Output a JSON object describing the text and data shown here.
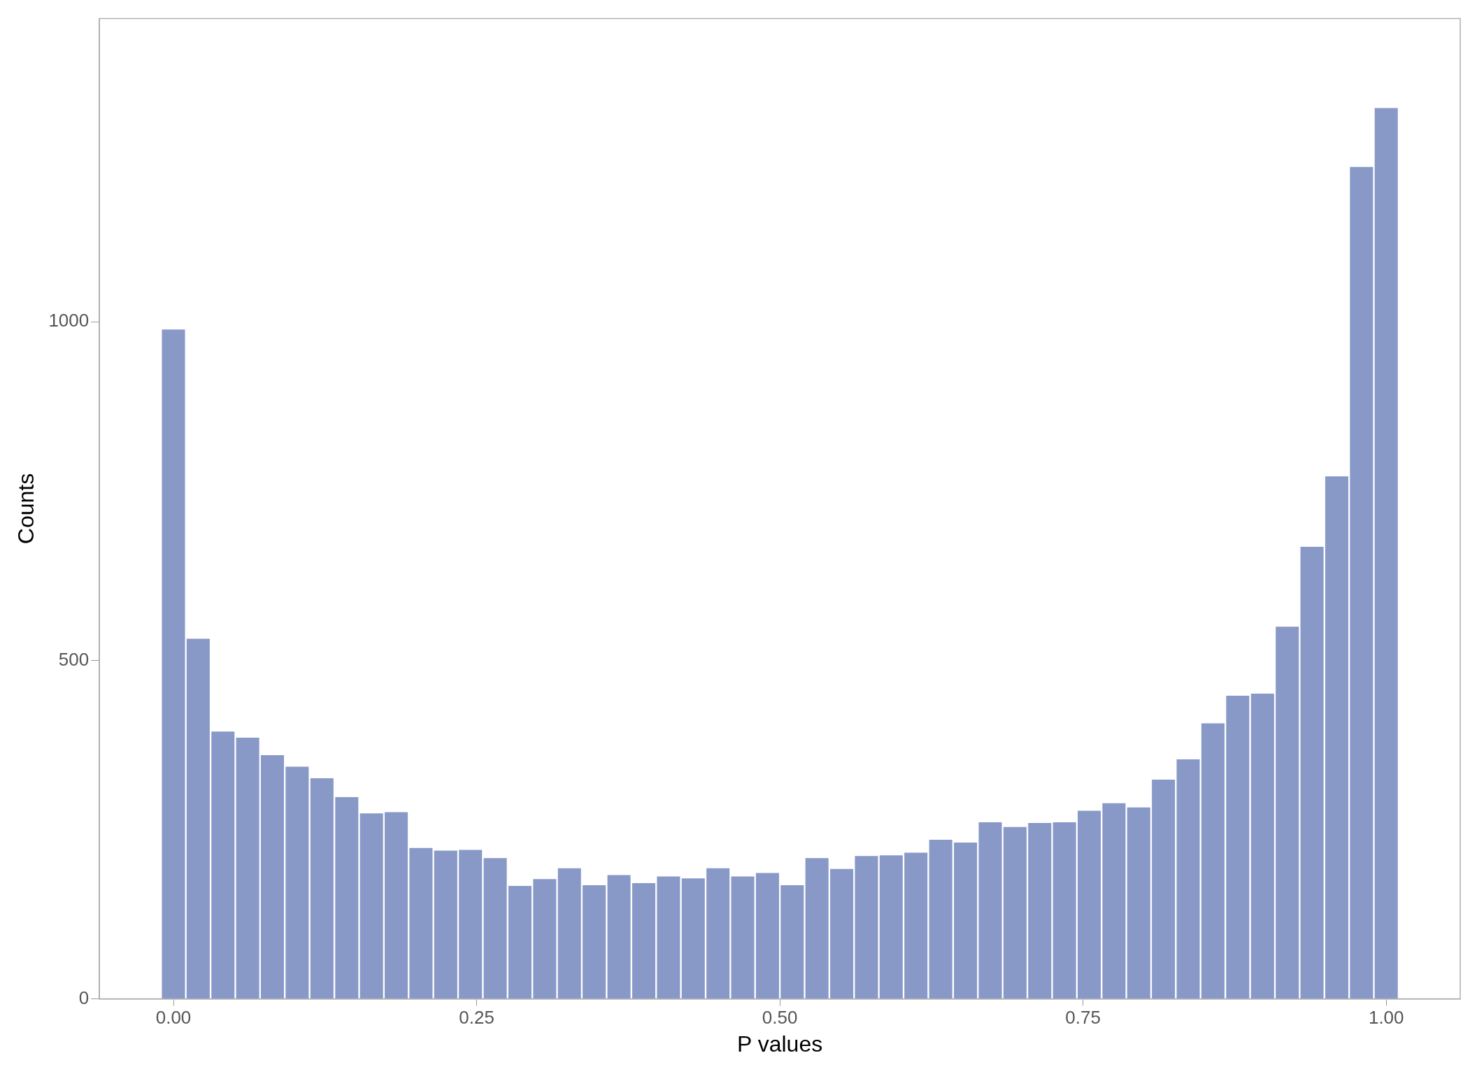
{
  "chart_data": {
    "type": "histogram",
    "xlabel": "P values",
    "ylabel": "Counts",
    "bins": [
      -0.0102,
      0.0102,
      0.0306,
      0.051,
      0.0714,
      0.0918,
      0.1122,
      0.1327,
      0.1531,
      0.1735,
      0.1939,
      0.2143,
      0.2347,
      0.2551,
      0.2755,
      0.2959,
      0.3163,
      0.3367,
      0.3571,
      0.3776,
      0.398,
      0.4184,
      0.4388,
      0.4592,
      0.4796,
      0.5,
      0.5204,
      0.5408,
      0.5612,
      0.5816,
      0.602,
      0.6224,
      0.6429,
      0.6633,
      0.6837,
      0.7041,
      0.7245,
      0.7449,
      0.7653,
      0.7857,
      0.8061,
      0.8265,
      0.8469,
      0.8673,
      0.8878,
      0.9082,
      0.9286,
      0.949,
      0.9694,
      0.9898,
      1.0102
    ],
    "values": [
      990,
      533,
      396,
      387,
      361,
      344,
      327,
      299,
      275,
      277,
      224,
      220,
      221,
      209,
      168,
      178,
      194,
      169,
      184,
      172,
      182,
      179,
      194,
      182,
      187,
      169,
      209,
      193,
      212,
      213,
      217,
      236,
      232,
      262,
      255,
      261,
      262,
      279,
      290,
      284,
      325,
      355,
      408,
      449,
      452,
      551,
      669,
      773,
      1230,
      1317
    ],
    "color": "#8899c8",
    "xlim": [
      -0.061,
      1.061
    ],
    "xticks": [
      {
        "value": 0,
        "label": "0.00"
      },
      {
        "value": 0.25,
        "label": "0.25"
      },
      {
        "value": 0.5,
        "label": "0.50"
      },
      {
        "value": 0.75,
        "label": "0.75"
      },
      {
        "value": 1,
        "label": "1.00"
      }
    ],
    "ylim": [
      0,
      1448
    ],
    "yticks": [
      0,
      500,
      1000
    ],
    "grid": false
  }
}
